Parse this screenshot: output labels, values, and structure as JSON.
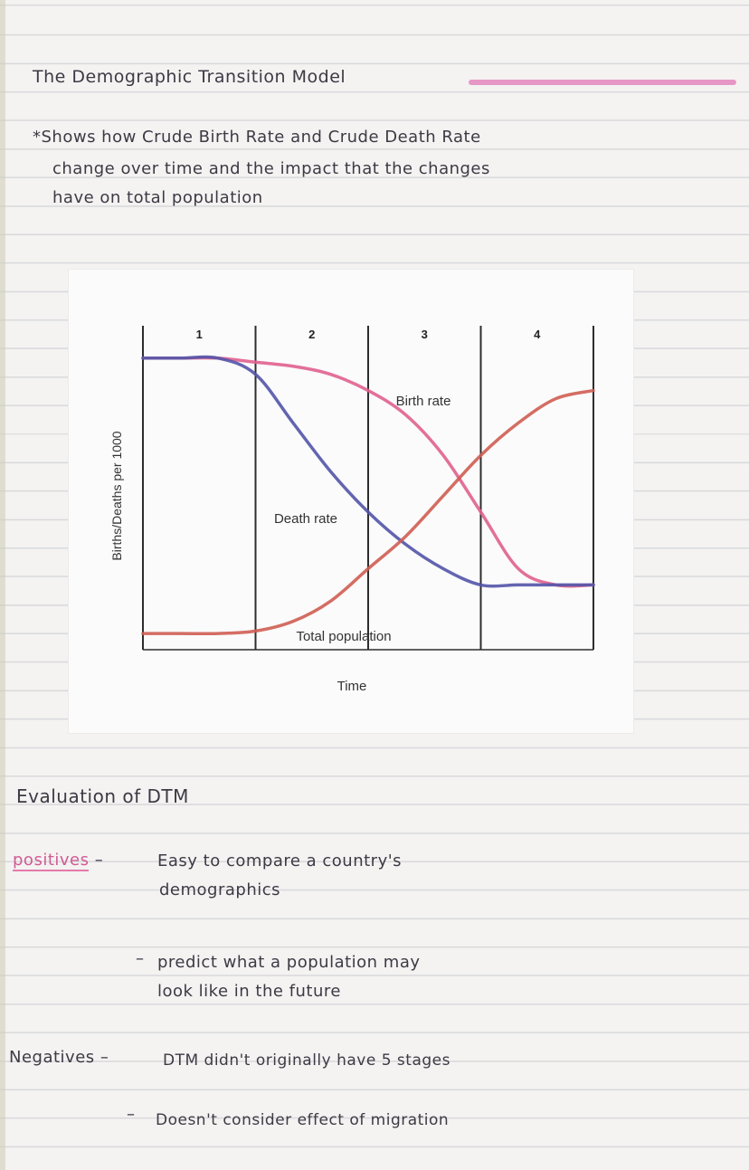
{
  "title": "The Demographic Transition Model",
  "intro": {
    "line1": "*Shows how Crude Birth Rate and Crude Death Rate",
    "line2": "change over time and the impact that the changes",
    "line3": "have on total population"
  },
  "chart_data": {
    "type": "line",
    "xlabel": "Time",
    "ylabel": "Births/Deaths per 1000",
    "stages": [
      "1",
      "2",
      "3",
      "4"
    ],
    "x": [
      0,
      1,
      2,
      3,
      4,
      5,
      6,
      7,
      8,
      9,
      10,
      11,
      12
    ],
    "series": [
      {
        "name": "Birth rate",
        "color": "#e0608e",
        "values": [
          36,
          36,
          36,
          35.5,
          35,
          34,
          32,
          29,
          24,
          17,
          10,
          8,
          8
        ]
      },
      {
        "name": "Death rate",
        "color": "#5254a8",
        "values": [
          36,
          36,
          36,
          34,
          28,
          22,
          17,
          13,
          10,
          8,
          8,
          8,
          8
        ]
      },
      {
        "name": "Total population",
        "color": "#cf5d52",
        "values": [
          2,
          2,
          2,
          2.3,
          3.5,
          6,
          10,
          14,
          19,
          24,
          28,
          31,
          32
        ]
      }
    ],
    "ylim": [
      0,
      40
    ]
  },
  "evaluation": {
    "heading": "Evaluation of DTM",
    "positives_label": "positives",
    "positives": [
      {
        "line1": "Easy to compare a country's",
        "line2": "demographics"
      },
      {
        "line1": "predict what a population may",
        "line2": "look like in the future"
      }
    ],
    "negatives_label": "Negatives",
    "negatives": [
      "DTM didn't originally have 5 stages",
      "Doesn't consider effect of migration"
    ]
  }
}
